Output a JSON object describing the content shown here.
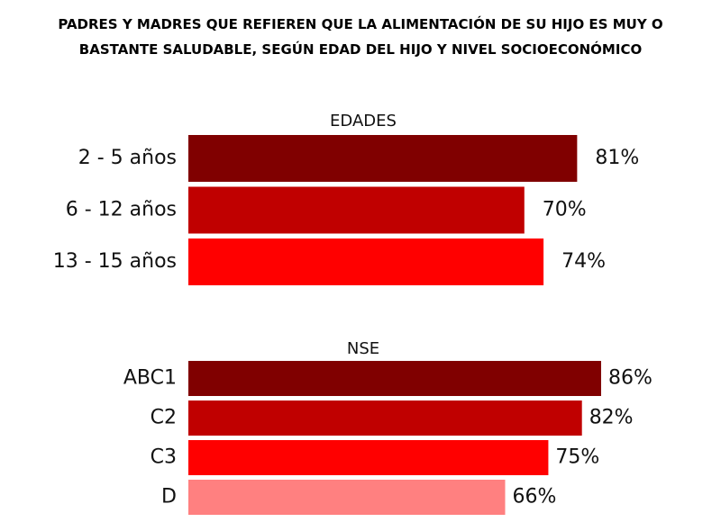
{
  "title": "PADRES Y MADRES QUE REFIEREN QUE LA ALIMENTACIÓN DE SU HIJO ES MUY O BASTANTE SALUDABLE, SEGÚN EDAD DEL HIJO Y NIVEL SOCIOECONÓMICO",
  "chart_data": [
    {
      "type": "bar",
      "orientation": "horizontal",
      "title": "EDADES",
      "categories": [
        "2 - 5 años",
        "6 - 12 años",
        "13 - 15 años"
      ],
      "values": [
        81,
        70,
        74
      ],
      "value_labels": [
        "81%",
        "70%",
        "74%"
      ],
      "colors": [
        "#800000",
        "#c00000",
        "#ff0000"
      ]
    },
    {
      "type": "bar",
      "orientation": "horizontal",
      "title": "NSE",
      "categories": [
        "ABC1",
        "C2",
        "C3",
        "D"
      ],
      "values": [
        86,
        82,
        75,
        66
      ],
      "value_labels": [
        "86%",
        "82%",
        "75%",
        "66%"
      ],
      "colors": [
        "#800000",
        "#c00000",
        "#ff0000",
        "#ff8080"
      ]
    }
  ]
}
